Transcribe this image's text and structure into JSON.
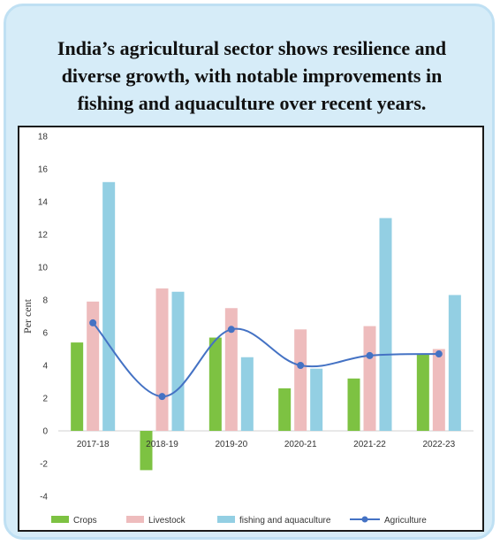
{
  "title_lines": [
    "India’s agricultural sector shows resilience and",
    "diverse growth, with notable improvements in",
    "fishing and aquaculture over recent years."
  ],
  "colors": {
    "crops": "#7dc242",
    "livestock": "#eebcbd",
    "fishing": "#93cfe3",
    "agriculture": "#4472c4",
    "frame_bg": "#d6ecf8",
    "frame_border": "#bfe0f3"
  },
  "chart_data": {
    "type": "bar",
    "title": "India’s agricultural sector shows resilience and diverse growth, with notable improvements in fishing and aquaculture over recent years.",
    "ylabel": "Per cent",
    "xlabel": "",
    "ylim": [
      -4,
      18
    ],
    "yticks": [
      -4,
      -2,
      0,
      2,
      4,
      6,
      8,
      10,
      12,
      14,
      16,
      18
    ],
    "categories": [
      "2017-18",
      "2018-19",
      "2019-20",
      "2020-21",
      "2021-22",
      "2022-23"
    ],
    "series": [
      {
        "name": "Crops",
        "kind": "bar",
        "values": [
          5.4,
          -2.4,
          5.7,
          2.6,
          3.2,
          4.7
        ]
      },
      {
        "name": "Livestock",
        "kind": "bar",
        "values": [
          7.9,
          8.7,
          7.5,
          6.2,
          6.4,
          5.0
        ]
      },
      {
        "name": "fishing and aquaculture",
        "kind": "bar",
        "values": [
          15.2,
          8.5,
          4.5,
          3.8,
          13.0,
          8.3
        ]
      },
      {
        "name": "Agriculture",
        "kind": "line",
        "values": [
          6.6,
          2.1,
          6.2,
          4.0,
          4.6,
          4.7
        ]
      }
    ],
    "legend_position": "bottom",
    "grid": false
  }
}
